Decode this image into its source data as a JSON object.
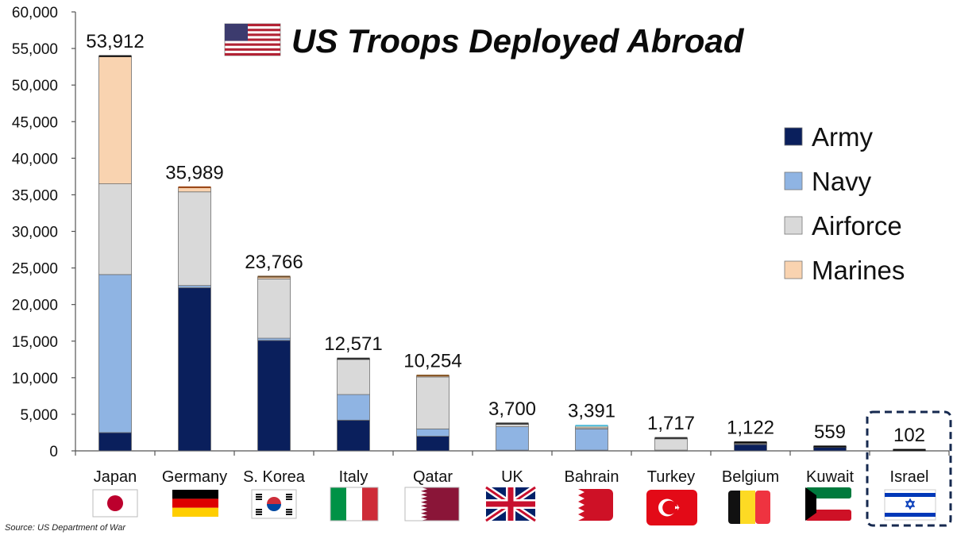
{
  "chart_data": {
    "type": "bar",
    "stacked": true,
    "title": "US Troops Deployed Abroad",
    "source": "Source: US Department of War",
    "categories": [
      "Japan",
      "Germany",
      "S. Korea",
      "Italy",
      "Qatar",
      "UK",
      "Bahrain",
      "Turkey",
      "Belgium",
      "Kuwait",
      "Israel"
    ],
    "totals": [
      53912,
      35989,
      23766,
      12571,
      10254,
      3700,
      3391,
      1717,
      1122,
      559,
      102
    ],
    "total_labels": [
      "53,912",
      "35,989",
      "23,766",
      "12,571",
      "10,254",
      "3,700",
      "3,391",
      "1,717",
      "1,122",
      "559",
      "102"
    ],
    "series": [
      {
        "name": "Army",
        "color": "#0a1f5c",
        "values": [
          2500,
          22300,
          15100,
          4200,
          2000,
          100,
          100,
          50,
          900,
          500,
          50
        ]
      },
      {
        "name": "Navy",
        "color": "#8fb4e3",
        "values": [
          21600,
          300,
          300,
          3500,
          1000,
          3200,
          2900,
          50,
          50,
          0,
          0
        ]
      },
      {
        "name": "Airforce",
        "color": "#d9d9d9",
        "values": [
          12400,
          12800,
          8100,
          4800,
          7100,
          350,
          150,
          1550,
          100,
          0,
          30
        ]
      },
      {
        "name": "Marines",
        "color": "#f9d3b0",
        "values": [
          17412,
          589,
          266,
          71,
          154,
          50,
          241,
          67,
          72,
          59,
          22
        ]
      }
    ],
    "top_caps": [
      "#0b0b0b",
      "#9c4a1a",
      "#6b4b2a",
      "#2b2b2b",
      "#8a5a2a",
      "#333333",
      "#4ab8d8",
      "#333333",
      "#0b0b0b",
      "#0b0b0b",
      "#0b0b0b"
    ],
    "highlight": "Israel",
    "ylim": [
      0,
      60000
    ],
    "yticks": [
      0,
      5000,
      10000,
      15000,
      20000,
      25000,
      30000,
      35000,
      40000,
      45000,
      50000,
      55000,
      60000
    ],
    "ytick_labels": [
      "0",
      "5,000",
      "10,000",
      "15,000",
      "20,000",
      "25,000",
      "30,000",
      "35,000",
      "40,000",
      "45,000",
      "50,000",
      "55,000",
      "60,000"
    ],
    "legend_position": "right",
    "flag_icons": [
      "japan-flag-icon",
      "germany-flag-icon",
      "south-korea-flag-icon",
      "italy-flag-icon",
      "qatar-flag-icon",
      "uk-flag-icon",
      "bahrain-flag-icon",
      "turkey-flag-icon",
      "belgium-flag-icon",
      "kuwait-flag-icon",
      "israel-flag-icon"
    ],
    "title_icon": "usa-flag-icon"
  }
}
